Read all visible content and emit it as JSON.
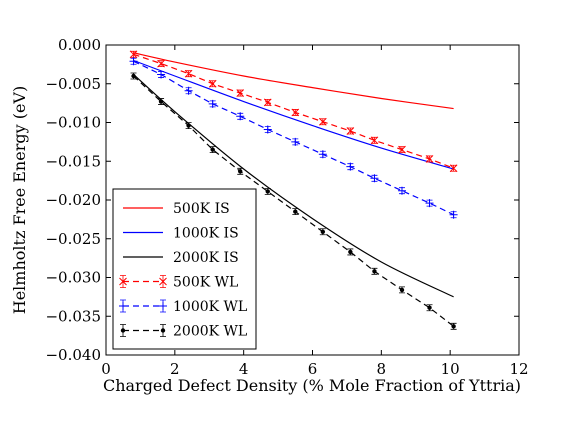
{
  "chart_data": {
    "type": "line",
    "xlabel": "Charged Defect Density (% Mole Fraction of Yttria)",
    "ylabel": "Helmholtz Free Energy (eV)",
    "xlim": [
      0,
      12
    ],
    "ylim": [
      -0.04,
      0.0
    ],
    "xticks": [
      "0",
      "2",
      "4",
      "6",
      "8",
      "10",
      "12"
    ],
    "yticks": [
      "0.000",
      "−0.005",
      "−0.010",
      "−0.015",
      "−0.020",
      "−0.025",
      "−0.030",
      "−0.035",
      "−0.040"
    ],
    "grid": false,
    "legend_position": "lower-left",
    "series": [
      {
        "name": "500K IS",
        "style": "solid",
        "marker": "none",
        "color": "#ff0000",
        "x": [
          0.8,
          2.0,
          4.0,
          6.0,
          8.0,
          10.1
        ],
        "y": [
          -0.001,
          -0.0022,
          -0.004,
          -0.0055,
          -0.0069,
          -0.0082
        ]
      },
      {
        "name": "1000K IS",
        "style": "solid",
        "marker": "none",
        "color": "#0000ff",
        "x": [
          0.8,
          2.0,
          4.0,
          6.0,
          8.0,
          10.1
        ],
        "y": [
          -0.002,
          -0.004,
          -0.0073,
          -0.0104,
          -0.0133,
          -0.016
        ]
      },
      {
        "name": "2000K IS",
        "style": "solid",
        "marker": "none",
        "color": "#000000",
        "x": [
          0.8,
          2.0,
          4.0,
          6.0,
          8.0,
          10.1
        ],
        "y": [
          -0.0038,
          -0.0086,
          -0.016,
          -0.0224,
          -0.028,
          -0.0325
        ]
      },
      {
        "name": "500K WL",
        "style": "dashed",
        "marker": "x",
        "color": "#ff0000",
        "x": [
          0.8,
          1.6,
          2.4,
          3.1,
          3.9,
          4.7,
          5.5,
          6.3,
          7.1,
          7.8,
          8.6,
          9.4,
          10.1
        ],
        "y": [
          -0.0012,
          -0.0024,
          -0.0037,
          -0.005,
          -0.0062,
          -0.0074,
          -0.0087,
          -0.0099,
          -0.0111,
          -0.0123,
          -0.0135,
          -0.0147,
          -0.0159
        ]
      },
      {
        "name": "1000K WL",
        "style": "dashed",
        "marker": "+",
        "color": "#0000ff",
        "x": [
          0.8,
          1.6,
          2.4,
          3.1,
          3.9,
          4.7,
          5.5,
          6.3,
          7.1,
          7.8,
          8.6,
          9.4,
          10.1
        ],
        "y": [
          -0.0021,
          -0.0038,
          -0.0059,
          -0.0076,
          -0.0092,
          -0.0109,
          -0.0125,
          -0.0141,
          -0.0157,
          -0.0172,
          -0.0188,
          -0.0204,
          -0.0219
        ]
      },
      {
        "name": "2000K WL",
        "style": "dashed",
        "marker": "dot",
        "color": "#000000",
        "x": [
          0.8,
          1.6,
          2.4,
          3.1,
          3.9,
          4.7,
          5.5,
          6.3,
          7.1,
          7.8,
          8.6,
          9.4,
          10.1
        ],
        "y": [
          -0.004,
          -0.0073,
          -0.0104,
          -0.0135,
          -0.0163,
          -0.0189,
          -0.0215,
          -0.0241,
          -0.0267,
          -0.0292,
          -0.0316,
          -0.0339,
          -0.0363
        ]
      }
    ]
  }
}
